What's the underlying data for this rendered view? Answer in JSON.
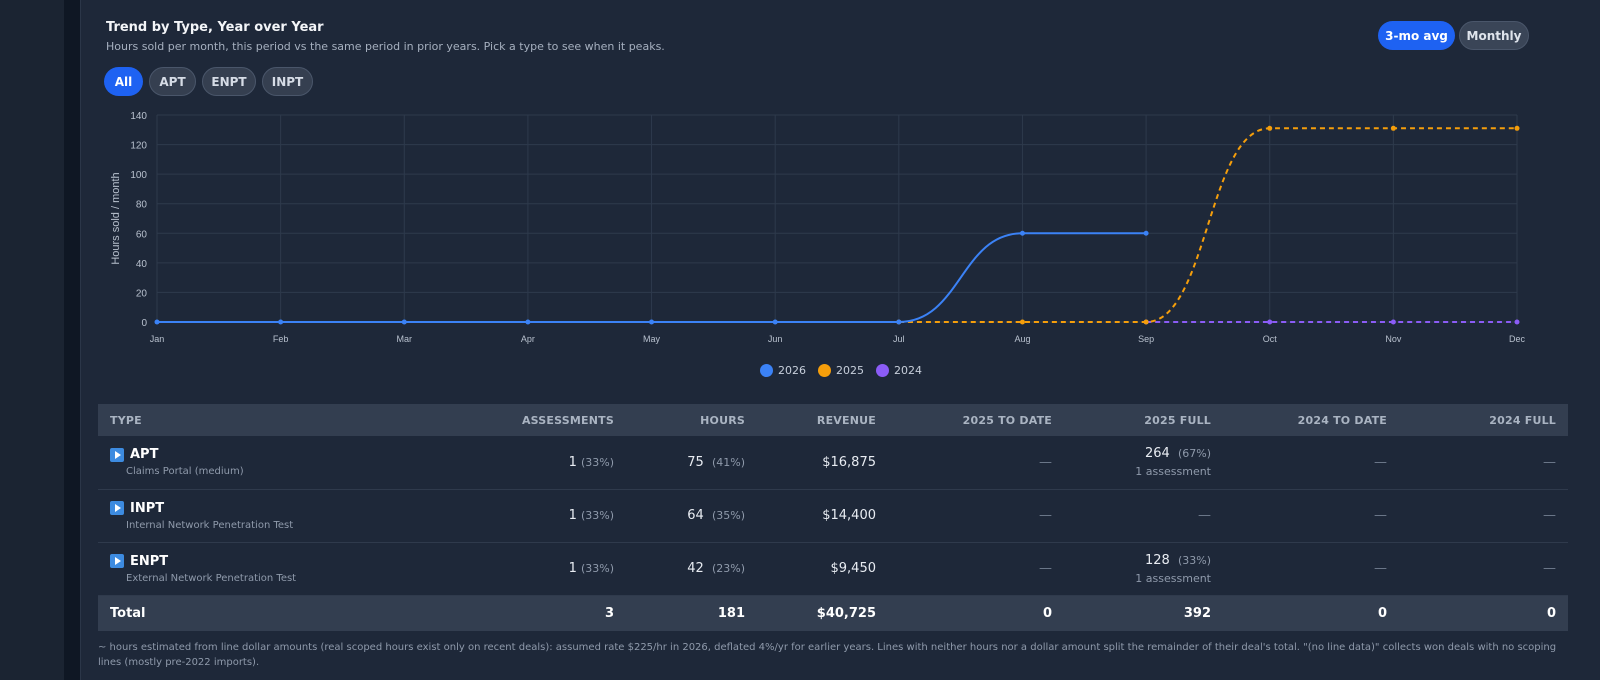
{
  "card": {
    "title": "Trend by Type, Year over Year",
    "subtitle": "Hours sold per month, this period vs the same period in prior years. Pick a type to see when it peaks."
  },
  "view_toggle": {
    "avg_label": "3-mo avg",
    "monthly_label": "Monthly",
    "selected": "3-mo avg"
  },
  "type_filters": {
    "items": [
      "All",
      "APT",
      "ENPT",
      "INPT"
    ],
    "selected": "All"
  },
  "chart_data": {
    "type": "line",
    "x": [
      "Jan",
      "Feb",
      "Mar",
      "Apr",
      "May",
      "Jun",
      "Jul",
      "Aug",
      "Sep",
      "Oct",
      "Nov",
      "Dec"
    ],
    "ylabel": "Hours sold / month",
    "ylim": [
      0,
      140
    ],
    "yticks": [
      0,
      20,
      40,
      60,
      80,
      100,
      120,
      140
    ],
    "grid": true,
    "legend_position": "bottom-center",
    "series": [
      {
        "name": "2026",
        "color": "#3b82f6",
        "dashed": false,
        "values": [
          0,
          0,
          0,
          0,
          0,
          0,
          0,
          60,
          60,
          null,
          null,
          null
        ]
      },
      {
        "name": "2025",
        "color": "#f59e0b",
        "dashed": true,
        "values": [
          null,
          null,
          null,
          null,
          null,
          null,
          0,
          0,
          0,
          131,
          131,
          131
        ]
      },
      {
        "name": "2024",
        "color": "#8b5cf6",
        "dashed": true,
        "values": [
          null,
          null,
          null,
          null,
          null,
          null,
          null,
          null,
          0,
          0,
          0,
          0
        ]
      }
    ]
  },
  "table": {
    "headers": [
      "TYPE",
      "ASSESSMENTS",
      "HOURS",
      "REVENUE",
      "2025 TO DATE",
      "2025 FULL",
      "2024 TO DATE",
      "2024 FULL"
    ],
    "rows": [
      {
        "type": "APT",
        "desc": "Claims Portal (medium)",
        "assessments": "1",
        "assessments_pct": "(33%)",
        "hours": "75",
        "hours_pct": "(41%)",
        "revenue": "$16,875",
        "y2025_to_date": "—",
        "y2025_full": "264",
        "y2025_full_pct": "(67%)",
        "y2025_full_sub": "1 assessment",
        "y2024_to_date": "—",
        "y2024_full": "—"
      },
      {
        "type": "INPT",
        "desc": "Internal Network Penetration Test",
        "assessments": "1",
        "assessments_pct": "(33%)",
        "hours": "64",
        "hours_pct": "(35%)",
        "revenue": "$14,400",
        "y2025_to_date": "—",
        "y2025_full": "—",
        "y2025_full_pct": "",
        "y2025_full_sub": "",
        "y2024_to_date": "—",
        "y2024_full": "—"
      },
      {
        "type": "ENPT",
        "desc": "External Network Penetration Test",
        "assessments": "1",
        "assessments_pct": "(33%)",
        "hours": "42",
        "hours_pct": "(23%)",
        "revenue": "$9,450",
        "y2025_to_date": "—",
        "y2025_full": "128",
        "y2025_full_pct": "(33%)",
        "y2025_full_sub": "1 assessment",
        "y2024_to_date": "—",
        "y2024_full": "—"
      }
    ],
    "total": {
      "label": "Total",
      "assessments": "3",
      "hours": "181",
      "revenue": "$40,725",
      "y2025_to_date": "0",
      "y2025_full": "392",
      "y2024_to_date": "0",
      "y2024_full": "0"
    }
  },
  "footnote": "~ hours estimated from line dollar amounts (real scoped hours exist only on recent deals): assumed rate $225/hr in 2026, deflated 4%/yr for earlier years. Lines with neither hours nor a dollar amount split the remainder of their deal's total. \"(no line data)\" collects won deals with no scoping lines (mostly pre-2022 imports)."
}
